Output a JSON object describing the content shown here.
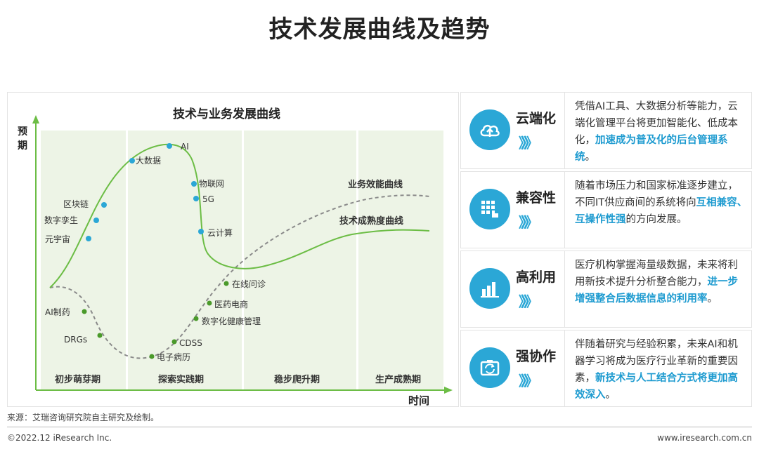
{
  "page": {
    "title": "技术发展曲线及趋势",
    "source": "来源：艾瑞咨询研究院自主研究及绘制。",
    "copyright": "©2022.12 iResearch Inc.",
    "website": "www.iresearch.com.cn"
  },
  "diagram": {
    "title": "技术与业务发展曲线",
    "y_axis_label": "预期",
    "x_axis_label": "时间",
    "phases": [
      "初步萌芽期",
      "探索实践期",
      "稳步爬升期",
      "生产成熟期"
    ],
    "curves": [
      "业务效能曲线",
      "技术成熟度曲线"
    ],
    "tech_points": [
      "区块链",
      "数字孪生",
      "元宇宙",
      "大数据",
      "AI",
      "物联网",
      "5G",
      "云计算"
    ],
    "business_points": [
      "AI制药",
      "DRGs",
      "电子病历",
      "CDSS",
      "数字化健康管理",
      "医药电商",
      "在线问诊"
    ]
  },
  "trends": [
    {
      "icon": "cloud-icon",
      "label": "云端化",
      "arrows": "》》》",
      "text": "凭借AI工具、大数据分析等能力，云端化管理平台将更加智能化、低成本化，",
      "highlight": "加速成为普及化的后台管理系统",
      "tail": "。"
    },
    {
      "icon": "grid-touch-icon",
      "label": "兼容性",
      "arrows": "》》》",
      "text": "随着市场压力和国家标准逐步建立，不同IT供应商间的系统将向",
      "highlight": "互相兼容、互操作性强",
      "tail": "的方向发展。"
    },
    {
      "icon": "bar-chart-icon",
      "label": "高利用",
      "arrows": "》》》",
      "text": "医疗机构掌握海量级数据，未来将利用新技术提升分析整合能力，",
      "highlight": "进一步增强整合后数据信息的利用率",
      "tail": "。"
    },
    {
      "icon": "sync-icon",
      "label": "强协作",
      "arrows": "》》》",
      "text": "伴随着研究与经验积累，未来AI和机器学习将成为医疗行业革新的重要因素，",
      "highlight": "新技术与人工结合方式将更加高效深入",
      "tail": "。"
    }
  ],
  "colors": {
    "accent": "#2ba7d6",
    "highlight": "#1e9bd0",
    "curve_green": "#6cbd45",
    "phase_bg": "#edf4e6",
    "dashed": "#8a8a8a"
  }
}
